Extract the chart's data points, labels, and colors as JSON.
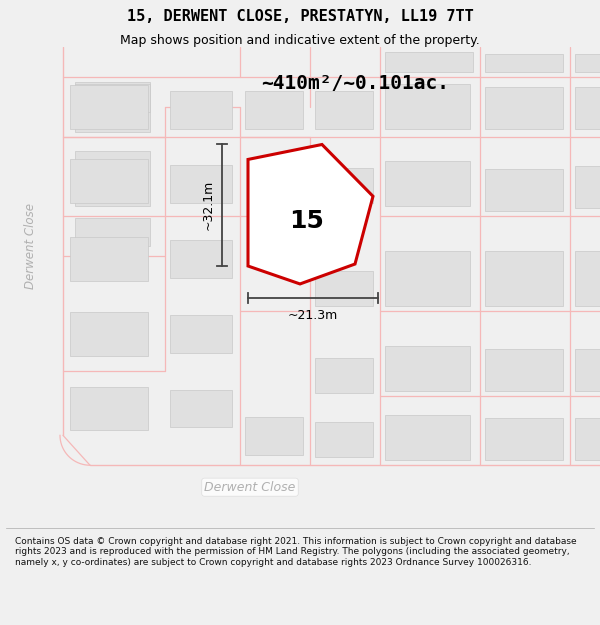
{
  "title_line1": "15, DERWENT CLOSE, PRESTATYN, LL19 7TT",
  "title_line2": "Map shows position and indicative extent of the property.",
  "area_label": "~410m²/~0.101ac.",
  "plot_number": "15",
  "dim_height": "~32.1m",
  "dim_width": "~21.3m",
  "road_label_bottom": "Derwent Close",
  "road_label_left": "Derwent Close",
  "copyright_text": "Contains OS data © Crown copyright and database right 2021. This information is subject to Crown copyright and database rights 2023 and is reproduced with the permission of HM Land Registry. The polygons (including the associated geometry, namely x, y co-ordinates) are subject to Crown copyright and database rights 2023 Ordnance Survey 100026316.",
  "bg_color": "#f0f0f0",
  "map_bg": "#ffffff",
  "building_fill": "#e0e0e0",
  "building_edge": "#c8c8c8",
  "road_color": "#f5b8b8",
  "plot_edge": "#cc0000",
  "dim_color": "#444444",
  "road_text_color": "#b0b0b0",
  "black": "#000000",
  "footer_text_color": "#111111",
  "title_font_size": 11,
  "subtitle_font_size": 9,
  "area_font_size": 14,
  "plot_num_font_size": 18,
  "dim_font_size": 9,
  "road_font_size": 9,
  "footer_font_size": 6.5
}
